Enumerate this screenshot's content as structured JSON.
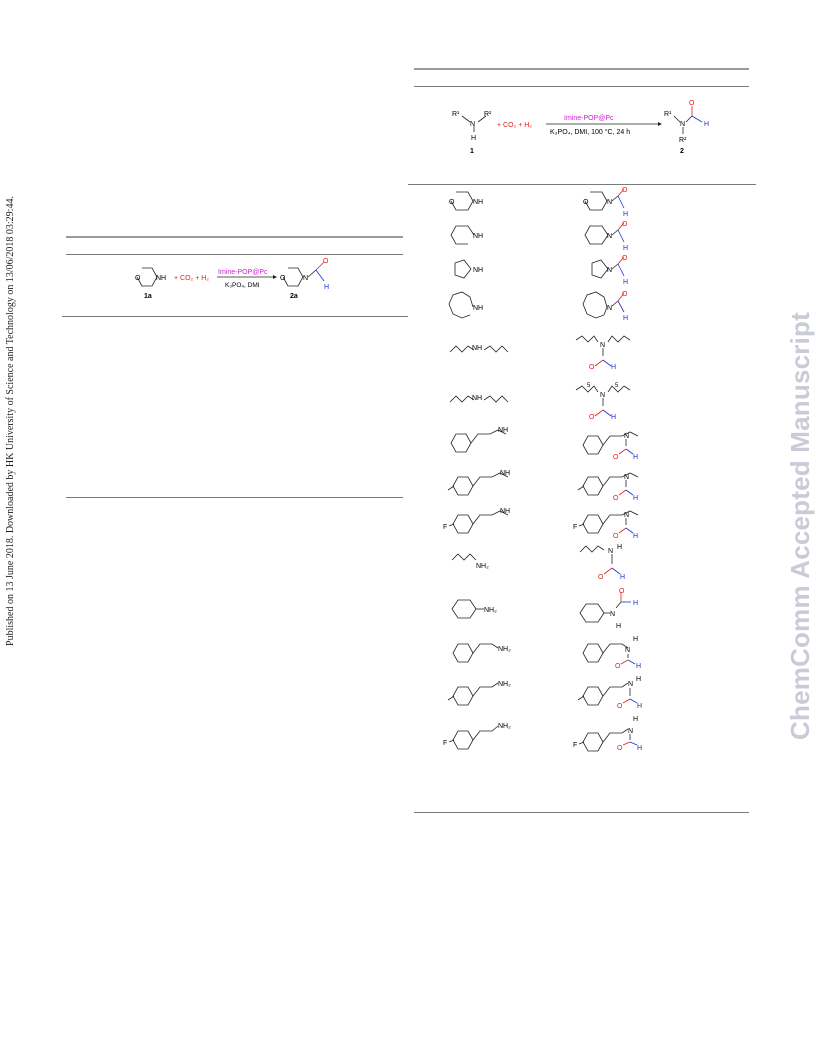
{
  "side_note": "Published on 13 June 2018. Downloaded by HK University of Science and Technology on 13/06/2018 03:29:44.",
  "watermark": "ChemComm Accepted Manuscript",
  "colors": {
    "oxygen": "#e0201c",
    "hydrogen": "#1a2fd6",
    "catalyst": "#d01ad6",
    "bond": "#222222",
    "rule": "#8a8a8a",
    "watermark": "#c9cbd6"
  },
  "scheme_small": {
    "substrate_label": "1a",
    "product_label": "2a",
    "reagents": "+ CO₂ + H₂",
    "catalyst": "Imine-POP@Pc",
    "conditions": "K₃PO₄, DMI"
  },
  "scheme_general": {
    "substrate_label": "1",
    "product_label": "2",
    "reagents": "+ CO₂ + H₂",
    "catalyst": "Imine-POP@Pc",
    "conditions": "K₃PO₄, DMI, 100 °C, 24 h",
    "substituents": [
      "R¹",
      "R²"
    ]
  },
  "atoms": {
    "N": "N",
    "O": "O",
    "H": "H",
    "NH": "NH",
    "NH2": "NH₂",
    "F": "F",
    "n5": "5"
  },
  "substrate_rows": [
    {
      "substrate": "morpholine",
      "product": "N-formylmorpholine"
    },
    {
      "substrate": "piperidine",
      "product": "N-formylpiperidine"
    },
    {
      "substrate": "pyrrolidine",
      "product": "N-formylpyrrolidine"
    },
    {
      "substrate": "azepane",
      "product": "N-formylazepane"
    },
    {
      "substrate": "dibutylamine",
      "product": "N,N-dibutylformamide"
    },
    {
      "substrate": "dihexylamine",
      "product": "N,N-dihexylformamide"
    },
    {
      "substrate": "N-methylbenzylamine",
      "product": "N-benzyl-N-methylformamide"
    },
    {
      "substrate": "N-methyl-4-methylbenzylamine",
      "product": "N-methyl-N-(4-methylbenzyl)formamide"
    },
    {
      "substrate": "N-methyl-4-fluorobenzylamine",
      "product": "N-(4-fluorobenzyl)-N-methylformamide"
    },
    {
      "substrate": "hexylamine",
      "product": "N-hexylformamide"
    },
    {
      "substrate": "cyclohexylamine",
      "product": "N-cyclohexylformamide"
    },
    {
      "substrate": "benzylamine",
      "product": "N-benzylformamide"
    },
    {
      "substrate": "4-methylbenzylamine",
      "product": "N-(4-methylbenzyl)formamide"
    },
    {
      "substrate": "4-fluorobenzylamine",
      "product": "N-(4-fluorobenzyl)formamide"
    }
  ]
}
